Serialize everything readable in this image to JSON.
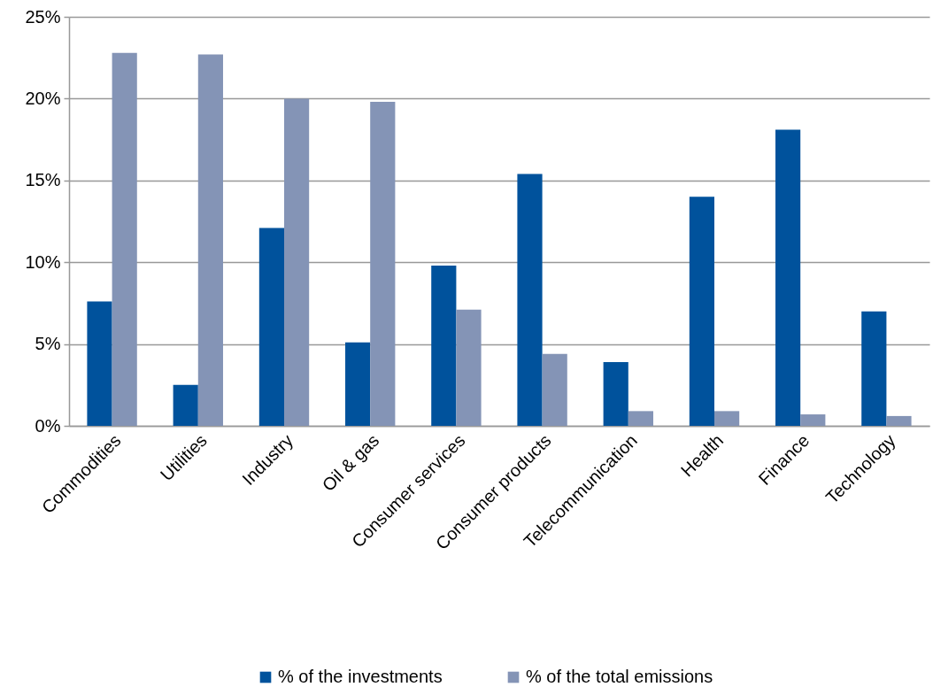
{
  "chart_data": {
    "type": "bar",
    "categories": [
      "Commodities",
      "Utilities",
      "Industry",
      "Oil & gas",
      "Consumer services",
      "Consumer products",
      "Telecommunication",
      "Health",
      "Finance",
      "Technology"
    ],
    "series": [
      {
        "name": "% of the investments",
        "color": "#00529c",
        "values": [
          7.6,
          2.5,
          12.1,
          5.1,
          9.8,
          15.4,
          3.9,
          14.0,
          18.1,
          7.0
        ]
      },
      {
        "name": "% of the total emissions",
        "color": "#8494b6",
        "values": [
          22.8,
          22.7,
          20.0,
          19.8,
          7.1,
          4.4,
          0.9,
          0.9,
          0.7,
          0.6
        ]
      }
    ],
    "ylim": [
      0,
      25
    ],
    "yticks": [
      {
        "value": 0,
        "label": "0%"
      },
      {
        "value": 5,
        "label": "5%"
      },
      {
        "value": 10,
        "label": "10%"
      },
      {
        "value": 15,
        "label": "15%"
      },
      {
        "value": 20,
        "label": "20%"
      },
      {
        "value": 25,
        "label": "25%"
      }
    ],
    "grid": "y",
    "legend": "bottom"
  }
}
